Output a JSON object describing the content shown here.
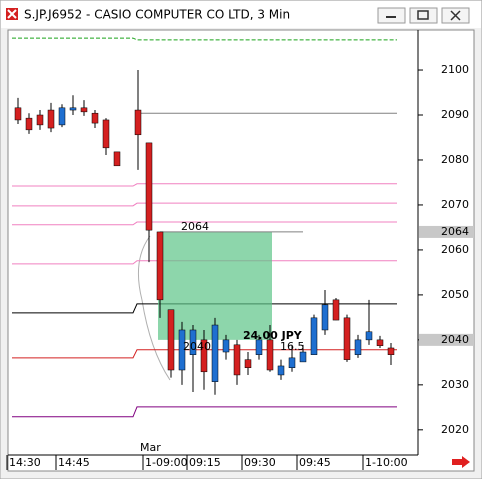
{
  "window_title": "S.JP.J6952 - CASIO COMPUTER CO LTD, 3 Min",
  "chart_data": {
    "type": "candlestick",
    "date_label": "Mar",
    "categories": [
      "14:30",
      null,
      null,
      null,
      "14:45",
      null,
      null,
      null,
      null,
      null,
      null,
      "1-09:00",
      null,
      null,
      null,
      "09:15",
      null,
      null,
      null,
      null,
      "09:30",
      null,
      null,
      null,
      null,
      "09:45",
      null,
      null,
      null,
      null,
      null,
      "1-10:00",
      null,
      null
    ],
    "open": [
      2091.6,
      2089.3,
      2090.0,
      2091.1,
      2087.8,
      2091.1,
      2091.6,
      2090.4,
      2088.9,
      2081.8,
      2091.1,
      2083.8,
      2064.0,
      2046.7,
      2033.3,
      2036.7,
      2040.0,
      2030.7,
      2037.3,
      2038.9,
      2035.6,
      2036.7,
      2040.0,
      2032.2,
      2033.8,
      2035.1,
      2036.7,
      2042.2,
      2048.9,
      2044.9,
      2036.7,
      2040.0,
      2040.0,
      2038.2
    ],
    "high": [
      2093.8,
      2090.4,
      2091.1,
      2092.7,
      2092.4,
      2094.4,
      2093.3,
      2091.1,
      2089.3,
      2081.8,
      2100.0,
      2083.8,
      2064.0,
      2046.7,
      2044.0,
      2043.3,
      2042.2,
      2044.9,
      2041.1,
      2040.0,
      2037.3,
      2041.1,
      2043.3,
      2035.6,
      2038.9,
      2038.9,
      2045.6,
      2051.1,
      2049.3,
      2045.6,
      2041.1,
      2048.9,
      2040.9,
      2039.3
    ],
    "low": [
      2088.0,
      2085.8,
      2086.7,
      2086.2,
      2087.3,
      2090.0,
      2089.8,
      2087.1,
      2081.1,
      2078.7,
      2077.8,
      2057.3,
      2044.9,
      2031.6,
      2030.0,
      2028.4,
      2028.9,
      2027.8,
      2035.6,
      2030.0,
      2032.2,
      2035.6,
      2032.9,
      2031.1,
      2032.9,
      2035.1,
      2036.7,
      2041.1,
      2044.4,
      2035.1,
      2036.0,
      2038.9,
      2038.2,
      2034.4
    ],
    "close": [
      2088.9,
      2086.7,
      2087.8,
      2087.1,
      2091.6,
      2091.6,
      2090.7,
      2088.2,
      2082.7,
      2078.7,
      2085.6,
      2064.4,
      2048.9,
      2033.3,
      2042.2,
      2042.2,
      2032.9,
      2043.3,
      2040.0,
      2032.2,
      2033.8,
      2040.0,
      2033.3,
      2034.2,
      2036.0,
      2037.3,
      2044.9,
      2047.8,
      2044.4,
      2035.6,
      2040.0,
      2041.8,
      2038.7,
      2036.7
    ],
    "up_color": "#1f6fd0",
    "down_color": "#d42020",
    "ylim": [
      2014.4,
      2108.9
    ],
    "yticks": [
      2020,
      2030,
      2040,
      2050,
      2060,
      2070,
      2080,
      2090,
      2100
    ],
    "levels": [
      {
        "color": "#1aa31a",
        "dash": true,
        "values": [
          2107.1,
          2106.7
        ]
      },
      {
        "color": "#808080",
        "dash": false,
        "values": [
          null,
          2090.4
        ]
      },
      {
        "color": "#f080c0",
        "dash": false,
        "values": [
          2074.2,
          2074.7
        ]
      },
      {
        "color": "#f080c0",
        "dash": false,
        "values": [
          2069.8,
          2070.4
        ]
      },
      {
        "color": "#f080c0",
        "dash": false,
        "values": [
          2065.6,
          2066.2
        ]
      },
      {
        "color": "#f080c0",
        "dash": false,
        "values": [
          2056.9,
          2057.6
        ]
      },
      {
        "color": "#000000",
        "dash": false,
        "values": [
          2046.0,
          2048.0
        ]
      },
      {
        "color": "#d42020",
        "dash": false,
        "values": [
          2036.0,
          2037.8
        ]
      },
      {
        "color": "#800080",
        "dash": false,
        "values": [
          2022.9,
          2025.1
        ]
      }
    ],
    "measure": {
      "from": 2064,
      "to": 2040,
      "from_label": "2064",
      "to_label": "2040",
      "diff_label": "24.00 JPY",
      "bars_label": "16.5",
      "color": "#5cc488"
    },
    "price_markers": [
      {
        "value": 2064,
        "label": "2064"
      },
      {
        "value": 2040,
        "label": "2040"
      }
    ]
  }
}
